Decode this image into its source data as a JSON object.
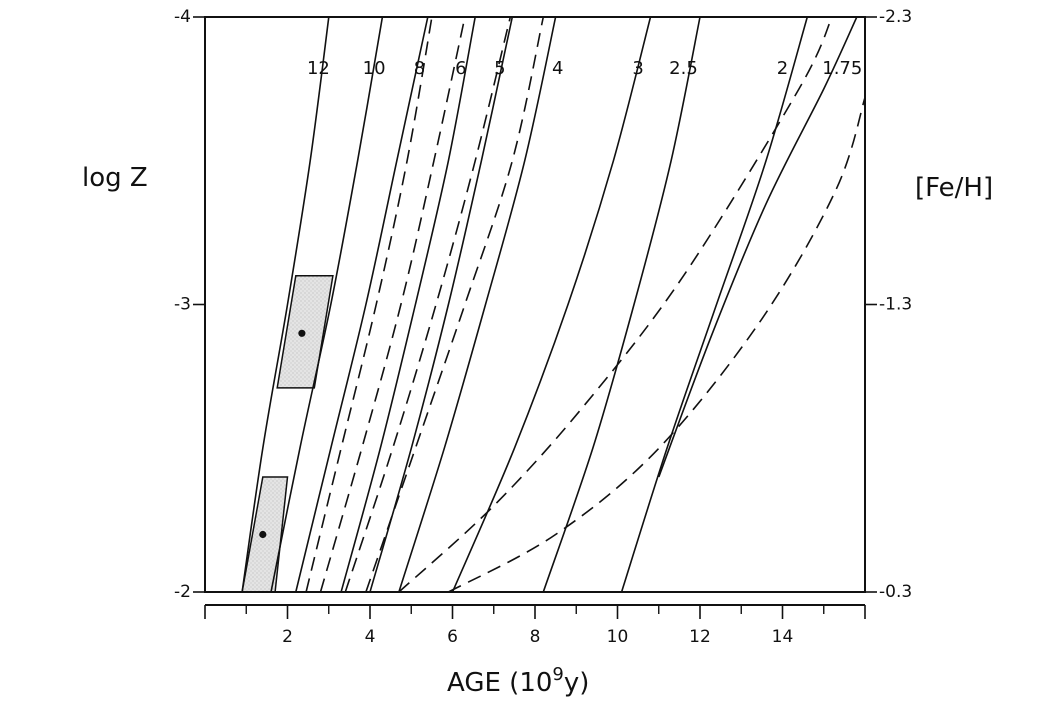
{
  "chart_data": {
    "type": "line",
    "xlabel": "AGE (10",
    "xlabel_sup": "9",
    "xlabel_tail": "y)",
    "ylabel_left": "log Z",
    "ylabel_right": "[Fe/H]",
    "xlim": [
      0,
      16
    ],
    "ylim_left": [
      -2,
      -4
    ],
    "x_ticks": [
      2,
      4,
      6,
      8,
      10,
      12,
      14
    ],
    "x_minor_ticks": [
      1,
      3,
      5,
      7,
      9,
      11,
      13,
      15
    ],
    "y_left_ticks": [
      -4,
      -3,
      -2
    ],
    "y_right_ticks": [
      {
        "logZ": -4,
        "label": "-2.3"
      },
      {
        "logZ": -3,
        "label": "-1.3"
      },
      {
        "logZ": -2,
        "label": "-0.3"
      }
    ],
    "left_tick_labels": [
      "-4",
      "-3",
      "-2"
    ],
    "grid": false,
    "solid_curves": [
      {
        "label": "12",
        "label_at": [
          2.75,
          -3.82
        ],
        "points": [
          [
            0.9,
            -2
          ],
          [
            1.4,
            -2.5
          ],
          [
            2.0,
            -3.0
          ],
          [
            2.55,
            -3.5
          ],
          [
            3.0,
            -4.0
          ]
        ]
      },
      {
        "label": "10",
        "label_at": [
          4.1,
          -3.82
        ],
        "points": [
          [
            1.6,
            -2
          ],
          [
            2.3,
            -2.5
          ],
          [
            3.05,
            -3.0
          ],
          [
            3.7,
            -3.5
          ],
          [
            4.3,
            -4.0
          ]
        ]
      },
      {
        "label": "8",
        "label_at": [
          5.2,
          -3.82
        ],
        "points": [
          [
            2.2,
            -2
          ],
          [
            3.05,
            -2.5
          ],
          [
            3.9,
            -3.0
          ],
          [
            4.65,
            -3.5
          ],
          [
            5.4,
            -4.0
          ]
        ]
      },
      {
        "label": "6",
        "label_at": [
          6.2,
          -3.82
        ],
        "points": [
          [
            3.3,
            -2
          ],
          [
            4.25,
            -2.5
          ],
          [
            5.1,
            -3.0
          ],
          [
            5.9,
            -3.5
          ],
          [
            6.55,
            -4.0
          ]
        ]
      },
      {
        "label": "5",
        "label_at": [
          7.15,
          -3.82
        ],
        "points": [
          [
            4.0,
            -2
          ],
          [
            5.0,
            -2.5
          ],
          [
            5.9,
            -3.0
          ],
          [
            6.7,
            -3.5
          ],
          [
            7.45,
            -4.0
          ]
        ]
      },
      {
        "label": "4",
        "label_at": [
          8.55,
          -3.82
        ],
        "points": [
          [
            4.7,
            -2
          ],
          [
            5.8,
            -2.5
          ],
          [
            6.8,
            -3.0
          ],
          [
            7.75,
            -3.5
          ],
          [
            8.5,
            -4.0
          ]
        ]
      },
      {
        "label": "3",
        "label_at": [
          10.5,
          -3.82
        ],
        "points": [
          [
            6.0,
            -2
          ],
          [
            7.5,
            -2.5
          ],
          [
            8.8,
            -3.0
          ],
          [
            9.9,
            -3.5
          ],
          [
            10.8,
            -4.0
          ]
        ]
      },
      {
        "label": "2.5",
        "label_at": [
          11.6,
          -3.82
        ],
        "points": [
          [
            8.2,
            -2
          ],
          [
            9.4,
            -2.5
          ],
          [
            10.4,
            -3.0
          ],
          [
            11.3,
            -3.5
          ],
          [
            12.0,
            -4.0
          ]
        ]
      },
      {
        "label": "2",
        "label_at": [
          14.0,
          -3.82
        ],
        "points": [
          [
            10.1,
            -2
          ],
          [
            11.2,
            -2.5
          ],
          [
            12.4,
            -3.0
          ],
          [
            13.6,
            -3.5
          ],
          [
            14.6,
            -4.0
          ]
        ]
      },
      {
        "label": "1.75",
        "label_at": [
          15.45,
          -3.82
        ],
        "points": [
          [
            11.0,
            -2.4
          ],
          [
            12.3,
            -2.9
          ],
          [
            13.6,
            -3.35
          ],
          [
            15.0,
            -3.75
          ],
          [
            15.8,
            -4.0
          ]
        ]
      }
    ],
    "dashed_curves": [
      {
        "points": [
          [
            2.45,
            -2
          ],
          [
            3.3,
            -2.5
          ],
          [
            4.15,
            -3.0
          ],
          [
            4.9,
            -3.5
          ],
          [
            5.5,
            -4.0
          ]
        ]
      },
      {
        "points": [
          [
            2.8,
            -2
          ],
          [
            3.8,
            -2.5
          ],
          [
            4.75,
            -3.0
          ],
          [
            5.55,
            -3.5
          ],
          [
            6.3,
            -4.0
          ]
        ]
      },
      {
        "points": [
          [
            3.4,
            -2
          ],
          [
            4.55,
            -2.5
          ],
          [
            5.6,
            -3.0
          ],
          [
            6.55,
            -3.5
          ],
          [
            7.4,
            -4.0
          ]
        ]
      },
      {
        "points": [
          [
            3.9,
            -2
          ],
          [
            5.1,
            -2.5
          ],
          [
            6.3,
            -3.0
          ],
          [
            7.45,
            -3.5
          ],
          [
            8.2,
            -4.0
          ]
        ]
      },
      {
        "points": [
          [
            4.7,
            -2
          ],
          [
            7.0,
            -2.3
          ],
          [
            9.2,
            -2.65
          ],
          [
            11.6,
            -3.1
          ],
          [
            14.4,
            -3.75
          ],
          [
            15.2,
            -4.0
          ]
        ]
      },
      {
        "points": [
          [
            5.9,
            -2
          ],
          [
            8.5,
            -2.2
          ],
          [
            11.0,
            -2.5
          ],
          [
            13.5,
            -2.95
          ],
          [
            15.3,
            -3.4
          ],
          [
            16.0,
            -3.72
          ]
        ]
      }
    ],
    "regions": [
      {
        "name": "upper-box",
        "polygon": [
          [
            2.2,
            -3.1
          ],
          [
            3.1,
            -3.1
          ],
          [
            2.65,
            -2.71
          ],
          [
            1.75,
            -2.71
          ]
        ]
      },
      {
        "name": "lower-box",
        "polygon": [
          [
            2.0,
            -2.4
          ],
          [
            1.4,
            -2.4
          ],
          [
            0.9,
            -2.0
          ],
          [
            1.7,
            -2.0
          ]
        ]
      }
    ],
    "points": [
      {
        "x": 2.35,
        "y": -2.9
      },
      {
        "x": 1.4,
        "y": -2.2
      }
    ]
  }
}
